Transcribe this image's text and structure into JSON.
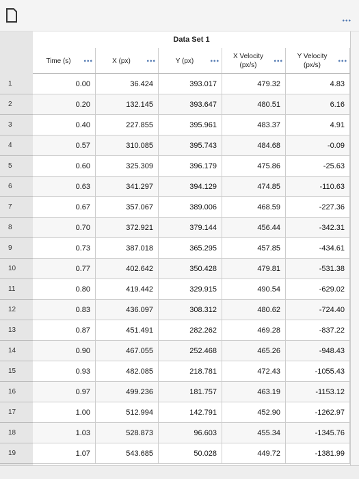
{
  "table": {
    "title": "Data Set 1",
    "headers": [
      [
        "Time (s)"
      ],
      [
        "X (px)"
      ],
      [
        "Y (px)"
      ],
      [
        "X Velocity",
        "(px/s)"
      ],
      [
        "Y Velocity",
        "(px/s)"
      ]
    ],
    "rows": [
      {
        "number": "1",
        "cells": [
          "0.00",
          "36.424",
          "393.017",
          "479.32",
          "4.83"
        ]
      },
      {
        "number": "2",
        "cells": [
          "0.20",
          "132.145",
          "393.647",
          "480.51",
          "6.16"
        ]
      },
      {
        "number": "3",
        "cells": [
          "0.40",
          "227.855",
          "395.961",
          "483.37",
          "4.91"
        ]
      },
      {
        "number": "4",
        "cells": [
          "0.57",
          "310.085",
          "395.743",
          "484.68",
          "-0.09"
        ]
      },
      {
        "number": "5",
        "cells": [
          "0.60",
          "325.309",
          "396.179",
          "475.86",
          "-25.63"
        ]
      },
      {
        "number": "6",
        "cells": [
          "0.63",
          "341.297",
          "394.129",
          "474.85",
          "-110.63"
        ]
      },
      {
        "number": "7",
        "cells": [
          "0.67",
          "357.067",
          "389.006",
          "468.59",
          "-227.36"
        ]
      },
      {
        "number": "8",
        "cells": [
          "0.70",
          "372.921",
          "379.144",
          "456.44",
          "-342.31"
        ]
      },
      {
        "number": "9",
        "cells": [
          "0.73",
          "387.018",
          "365.295",
          "457.85",
          "-434.61"
        ]
      },
      {
        "number": "10",
        "cells": [
          "0.77",
          "402.642",
          "350.428",
          "479.81",
          "-531.38"
        ]
      },
      {
        "number": "11",
        "cells": [
          "0.80",
          "419.442",
          "329.915",
          "490.54",
          "-629.02"
        ]
      },
      {
        "number": "12",
        "cells": [
          "0.83",
          "436.097",
          "308.312",
          "480.62",
          "-724.40"
        ]
      },
      {
        "number": "13",
        "cells": [
          "0.87",
          "451.491",
          "282.262",
          "469.28",
          "-837.22"
        ]
      },
      {
        "number": "14",
        "cells": [
          "0.90",
          "467.055",
          "252.468",
          "465.26",
          "-948.43"
        ]
      },
      {
        "number": "15",
        "cells": [
          "0.93",
          "482.085",
          "218.781",
          "472.43",
          "-1055.43"
        ]
      },
      {
        "number": "16",
        "cells": [
          "0.97",
          "499.236",
          "181.757",
          "463.19",
          "-1153.12"
        ]
      },
      {
        "number": "17",
        "cells": [
          "1.00",
          "512.994",
          "142.791",
          "452.90",
          "-1262.97"
        ]
      },
      {
        "number": "18",
        "cells": [
          "1.03",
          "528.873",
          "96.603",
          "455.34",
          "-1345.76"
        ]
      },
      {
        "number": "19",
        "cells": [
          "1.07",
          "543.685",
          "50.028",
          "449.72",
          "-1381.99"
        ]
      }
    ]
  }
}
